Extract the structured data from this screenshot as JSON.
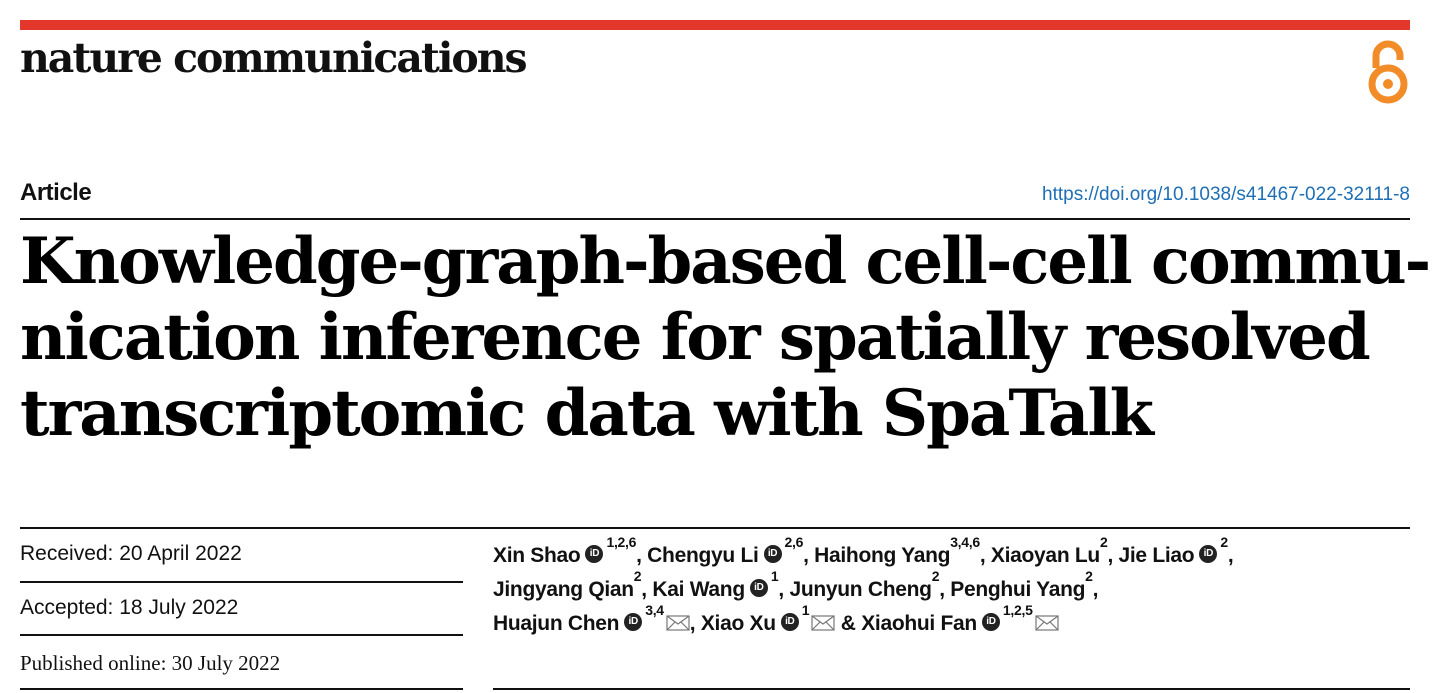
{
  "journal": "nature communications",
  "article_type": "Article",
  "doi": "https://doi.org/10.1038/s41467-022-32111-8",
  "title_lines": [
    "Knowledge-graph-based cell-cell commu-",
    "nication inference for spatially resolved",
    "transcriptomic data with SpaTalk"
  ],
  "dates": {
    "received": "Received: 20 April 2022",
    "accepted": "Accepted: 18 July 2022",
    "published": "Published online: 30 July 2022"
  },
  "authors": [
    {
      "name": "Xin Shao",
      "orcid": true,
      "aff": "1,2,6",
      "mail": false,
      "sep": ", "
    },
    {
      "name": "Chengyu Li",
      "orcid": true,
      "aff": "2,6",
      "mail": false,
      "sep": ", "
    },
    {
      "name": "Haihong Yang",
      "orcid": false,
      "aff": "3,4,6",
      "mail": false,
      "sep": ", "
    },
    {
      "name": "Xiaoyan Lu",
      "orcid": false,
      "aff": "2",
      "mail": false,
      "sep": ", "
    },
    {
      "name": "Jie Liao",
      "orcid": true,
      "aff": "2",
      "mail": false,
      "sep": ","
    },
    {
      "name": "Jingyang Qian",
      "orcid": false,
      "aff": "2",
      "mail": false,
      "sep": ", "
    },
    {
      "name": "Kai Wang",
      "orcid": true,
      "aff": "1",
      "mail": false,
      "sep": ", "
    },
    {
      "name": "Junyun Cheng",
      "orcid": false,
      "aff": "2",
      "mail": false,
      "sep": ", "
    },
    {
      "name": "Penghui Yang",
      "orcid": false,
      "aff": "2",
      "mail": false,
      "sep": ","
    },
    {
      "name": "Huajun Chen",
      "orcid": true,
      "aff": "3,4",
      "mail": true,
      "sep": ", "
    },
    {
      "name": "Xiao Xu",
      "orcid": true,
      "aff": "1",
      "mail": true,
      "sep": " & "
    },
    {
      "name": "Xiaohui Fan",
      "orcid": true,
      "aff": "1,2,5",
      "mail": true,
      "sep": ""
    }
  ],
  "author_line_breaks": [
    5,
    9
  ],
  "colors": {
    "accent_bar": "#e2372a",
    "link": "#1f6fb5",
    "open_access": "#f28c28"
  },
  "icons": {
    "open_access": "open-access-icon",
    "orcid": "orcid-icon",
    "mail": "mail-icon"
  }
}
